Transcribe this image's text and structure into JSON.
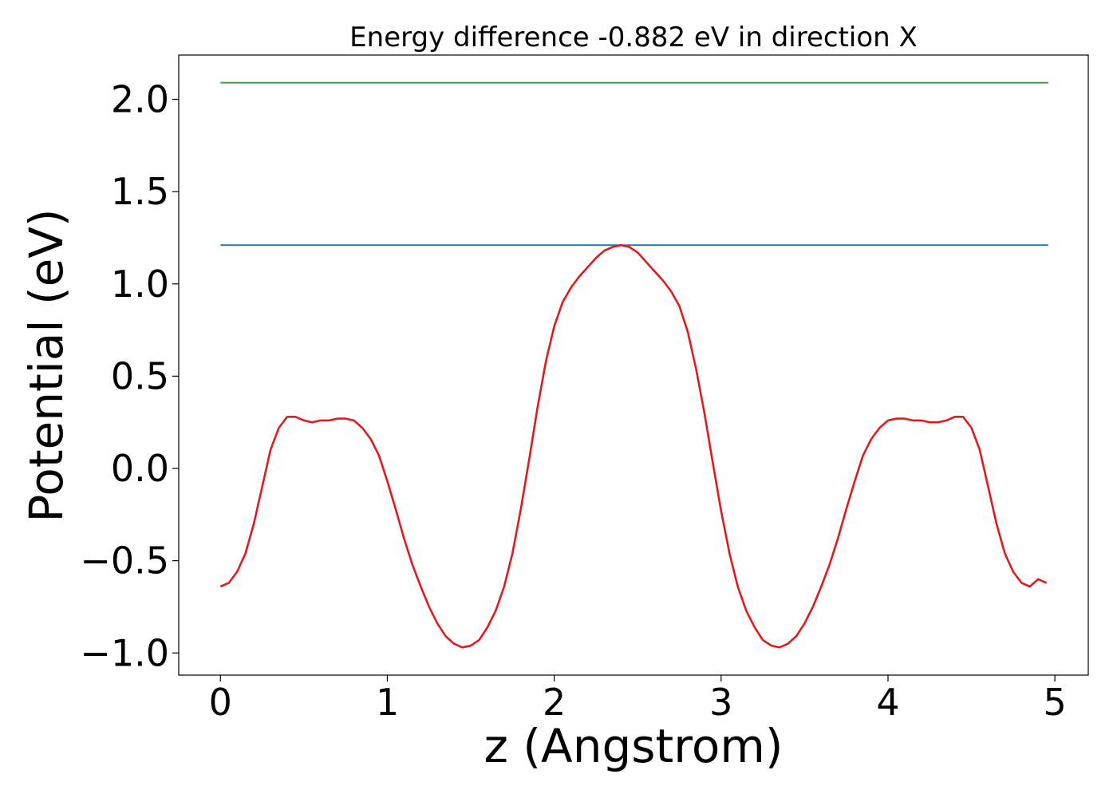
{
  "chart_data": {
    "type": "line",
    "title": "Energy difference -0.882 eV in direction X",
    "xlabel": "z (Angstrom)",
    "ylabel": "Potential (eV)",
    "xlim": [
      -0.25,
      5.2
    ],
    "ylim": [
      -1.12,
      2.24
    ],
    "xticks": [
      0,
      1,
      2,
      3,
      4,
      5
    ],
    "xtick_labels": [
      "0",
      "1",
      "2",
      "3",
      "4",
      "5"
    ],
    "yticks": [
      -1.0,
      -0.5,
      0.0,
      0.5,
      1.0,
      1.5,
      2.0
    ],
    "ytick_labels": [
      "−1.0",
      "−0.5",
      "0.0",
      "0.5",
      "1.0",
      "1.5",
      "2.0"
    ],
    "grid": false,
    "legend": "none",
    "series": [
      {
        "color": "#2ca02c",
        "x": [
          0,
          4.96
        ],
        "y": [
          2.09,
          2.09
        ]
      },
      {
        "color": "#1f77b4",
        "x": [
          0,
          4.96
        ],
        "y": [
          1.21,
          1.21
        ]
      },
      {
        "color": "#e31a1c",
        "x": [
          0,
          0.05,
          0.1,
          0.15,
          0.2,
          0.25,
          0.3,
          0.35,
          0.4,
          0.45,
          0.5,
          0.55,
          0.6,
          0.65,
          0.7,
          0.75,
          0.8,
          0.85,
          0.9,
          0.95,
          1.0,
          1.05,
          1.1,
          1.15,
          1.2,
          1.25,
          1.3,
          1.35,
          1.4,
          1.45,
          1.5,
          1.55,
          1.6,
          1.65,
          1.7,
          1.75,
          1.8,
          1.85,
          1.9,
          1.95,
          2.0,
          2.05,
          2.1,
          2.15,
          2.2,
          2.25,
          2.3,
          2.35,
          2.4,
          2.45,
          2.5,
          2.55,
          2.6,
          2.65,
          2.7,
          2.75,
          2.8,
          2.85,
          2.9,
          2.95,
          3.0,
          3.05,
          3.1,
          3.15,
          3.2,
          3.25,
          3.3,
          3.35,
          3.4,
          3.45,
          3.5,
          3.55,
          3.6,
          3.65,
          3.7,
          3.75,
          3.8,
          3.85,
          3.9,
          3.95,
          4.0,
          4.05,
          4.1,
          4.15,
          4.2,
          4.25,
          4.3,
          4.35,
          4.4,
          4.45,
          4.5,
          4.55,
          4.6,
          4.65,
          4.7,
          4.75,
          4.8,
          4.85,
          4.9,
          4.95
        ],
        "y": [
          -0.64,
          -0.62,
          -0.56,
          -0.46,
          -0.3,
          -0.1,
          0.1,
          0.22,
          0.28,
          0.28,
          0.26,
          0.25,
          0.26,
          0.26,
          0.27,
          0.27,
          0.26,
          0.22,
          0.16,
          0.07,
          -0.07,
          -0.22,
          -0.38,
          -0.52,
          -0.64,
          -0.75,
          -0.84,
          -0.91,
          -0.95,
          -0.97,
          -0.96,
          -0.93,
          -0.86,
          -0.77,
          -0.64,
          -0.46,
          -0.22,
          0.05,
          0.33,
          0.58,
          0.77,
          0.9,
          0.98,
          1.04,
          1.09,
          1.14,
          1.18,
          1.2,
          1.21,
          1.2,
          1.17,
          1.12,
          1.07,
          1.02,
          0.96,
          0.88,
          0.74,
          0.54,
          0.3,
          0.03,
          -0.23,
          -0.46,
          -0.64,
          -0.77,
          -0.86,
          -0.93,
          -0.96,
          -0.97,
          -0.95,
          -0.91,
          -0.84,
          -0.75,
          -0.64,
          -0.52,
          -0.38,
          -0.22,
          -0.07,
          0.07,
          0.16,
          0.22,
          0.26,
          0.27,
          0.27,
          0.26,
          0.26,
          0.25,
          0.25,
          0.26,
          0.28,
          0.28,
          0.22,
          0.1,
          -0.1,
          -0.3,
          -0.46,
          -0.56,
          -0.62,
          -0.64,
          -0.6,
          -0.62
        ]
      }
    ]
  }
}
